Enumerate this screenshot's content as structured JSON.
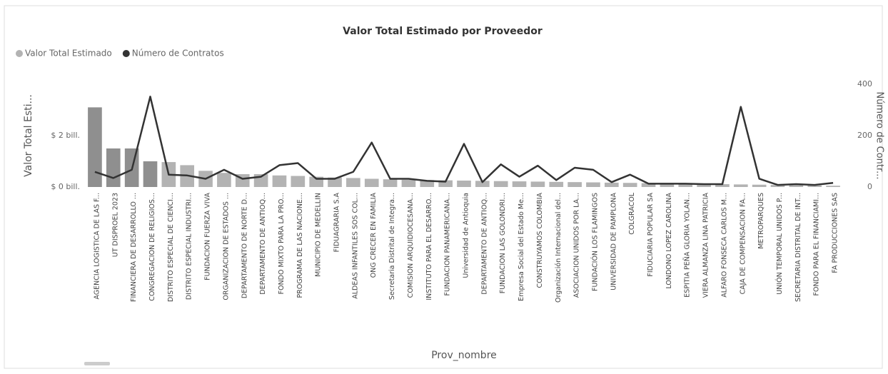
{
  "chart_data": {
    "type": "combo",
    "title": "Valor Total Estimado por Proveedor",
    "x_label": "Prov_nombre",
    "y_label": "Valor Total Esti...",
    "y2_label": "Número de Contr...",
    "legend": "top-left",
    "categories": [
      "AGENCIA LOGISTICA DE LAS F...",
      "UT DISPROEL 2023",
      "FINANCIERA DE DESARROLLO ...",
      "CONGREGACION DE RELIGIOS...",
      "DISTRITO ESPECIAL DE CIENCI...",
      "DISTRITO ESPECIAL INDUSTRI...",
      "FUNDACION FUERZA VIVA",
      "ORGANIZACION DE ESTADOS ...",
      "DEPARTAMENTO DE NORTE D...",
      "DEPARTAMENTO DE ANTIOQ...",
      "FONDO MIXTO PARA LA PRO...",
      "PROGRAMA DE LAS NACIONE...",
      "MUNICIPIO DE MEDELLIN",
      "FIDUAGRARIA S.A",
      "ALDEAS INFANTILES SOS COL...",
      "ONG CRECER EN FAMILIA",
      "Secretaria Distrital de Integra...",
      "COMISION ARQUIDIOCESANA...",
      "INSTITUTO PARA EL DESARRO...",
      "FUNDACION PANAMERICANA...",
      "Universidad de Antioquia",
      "DEPARTAMENTO DE ANTIOQ...",
      "FUNDACION LAS GOLONDRI...",
      "Empresa Social del Estado Me...",
      "CONSTRUYAMOS COLOMBIA",
      "Organización Internacional del...",
      "ASOCIACION UNIDOS POR LA...",
      "FUNDACIÓN LOS FLAMINGOS",
      "UNIVERSIDAD DE PAMPLONA",
      "COLGRACOL",
      "FIDUCIARIA POPULAR SA",
      "LONDONO LOPEZ CAROLINA",
      "ESPITIA PEÑA GLORIA YOLAN...",
      "VIERA ALMANZA LINA PATRICIA",
      "ALFARO FONSECA CARLOS M...",
      "CAJA DE COMPENSACION FA...",
      "METROPARQUES",
      "UNIÓN TEMPORAL UNIDOS P...",
      "SECRETARIA DISTRITAL DE INT...",
      "FONDO PARA EL FINANCIAMI...",
      "FA PRODUCCIONES SAS"
    ],
    "series": [
      {
        "name": "Valor Total Estimado",
        "type": "bar",
        "color": "#b3b3b3",
        "values": [
          3.1,
          1.5,
          1.5,
          1.0,
          0.97,
          0.85,
          0.63,
          0.55,
          0.5,
          0.5,
          0.45,
          0.43,
          0.4,
          0.37,
          0.35,
          0.32,
          0.3,
          0.28,
          0.27,
          0.26,
          0.25,
          0.24,
          0.23,
          0.22,
          0.21,
          0.2,
          0.19,
          0.18,
          0.17,
          0.16,
          0.15,
          0.14,
          0.13,
          0.12,
          0.11,
          0.1,
          0.09,
          0.08,
          0.07,
          0.06,
          0.05
        ]
      },
      {
        "name": "Número de Contratos",
        "type": "line",
        "axis": "y2",
        "color": "#333333",
        "values": [
          59,
          35,
          67,
          352,
          48,
          45,
          32,
          67,
          32,
          40,
          85,
          93,
          32,
          32,
          59,
          173,
          32,
          32,
          24,
          21,
          168,
          19,
          88,
          40,
          83,
          27,
          75,
          67,
          19,
          48,
          13,
          13,
          13,
          11,
          11,
          312,
          32,
          8,
          11,
          8,
          16
        ]
      }
    ],
    "ylim": [
      0,
      4
    ],
    "yticks": [
      {
        "value": 0,
        "label": "$ 0 bill."
      },
      {
        "value": 2,
        "label": "$ 2 bill."
      }
    ],
    "y2lim": [
      0,
      400
    ],
    "y2ticks": [
      0,
      200,
      400
    ]
  }
}
